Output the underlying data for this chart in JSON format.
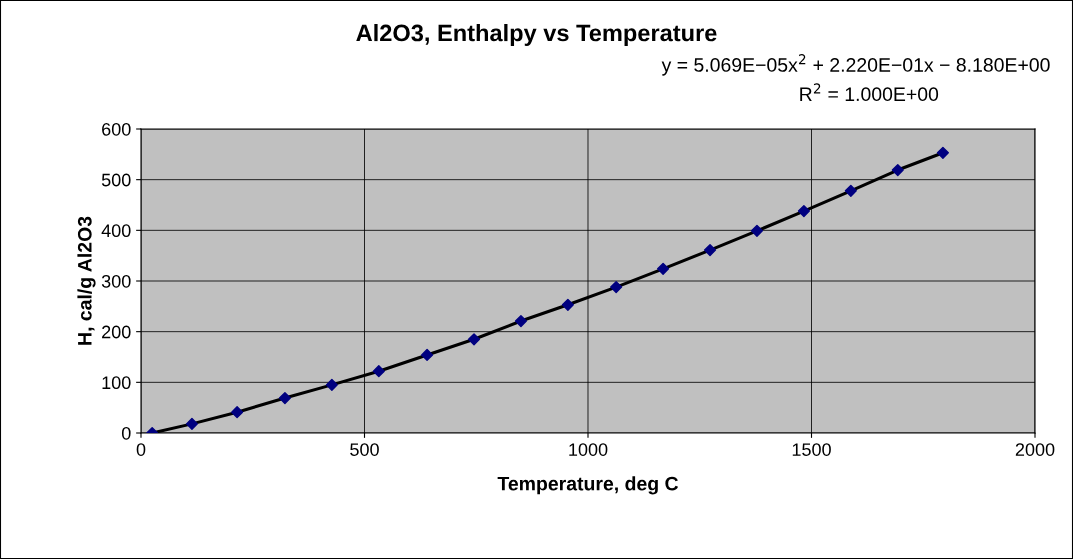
{
  "chart_data": {
    "type": "scatter",
    "title": "Al2O3, Enthalpy vs Temperature",
    "xlabel": "Temperature, deg C",
    "ylabel": "H, cal/g Al2O3",
    "annotations": [
      "y = 5.069E−05x$^{2}$ + 2.220E−01x − 8.180E+00",
      "R$^{2}$ = 1.000E+00"
    ],
    "x": [
      25,
      114,
      215,
      322,
      427,
      532,
      640,
      745,
      850,
      955,
      1063,
      1168,
      1273,
      1378,
      1483,
      1588,
      1693,
      1794
    ],
    "series": [
      {
        "type": "line",
        "color": "#000000",
        "marker": "none",
        "values": [
          0,
          18,
          41,
          69,
          95,
          122,
          154,
          185,
          221,
          253,
          288,
          324,
          361,
          399,
          438,
          478,
          519,
          553
        ]
      },
      {
        "color": "#000080",
        "marker": "diamond",
        "values": [
          0,
          18,
          41,
          69,
          95,
          122,
          154,
          185,
          221,
          253,
          288,
          324,
          361,
          399,
          438,
          478,
          519,
          553
        ]
      }
    ],
    "xlim": [
      0,
      2000
    ],
    "xticks": [
      0,
      500,
      1000,
      1500,
      2000
    ],
    "ylim": [
      0,
      600
    ],
    "yticks": [
      0,
      100,
      200,
      300,
      400,
      500,
      600
    ],
    "grid": true,
    "legend": false
  }
}
